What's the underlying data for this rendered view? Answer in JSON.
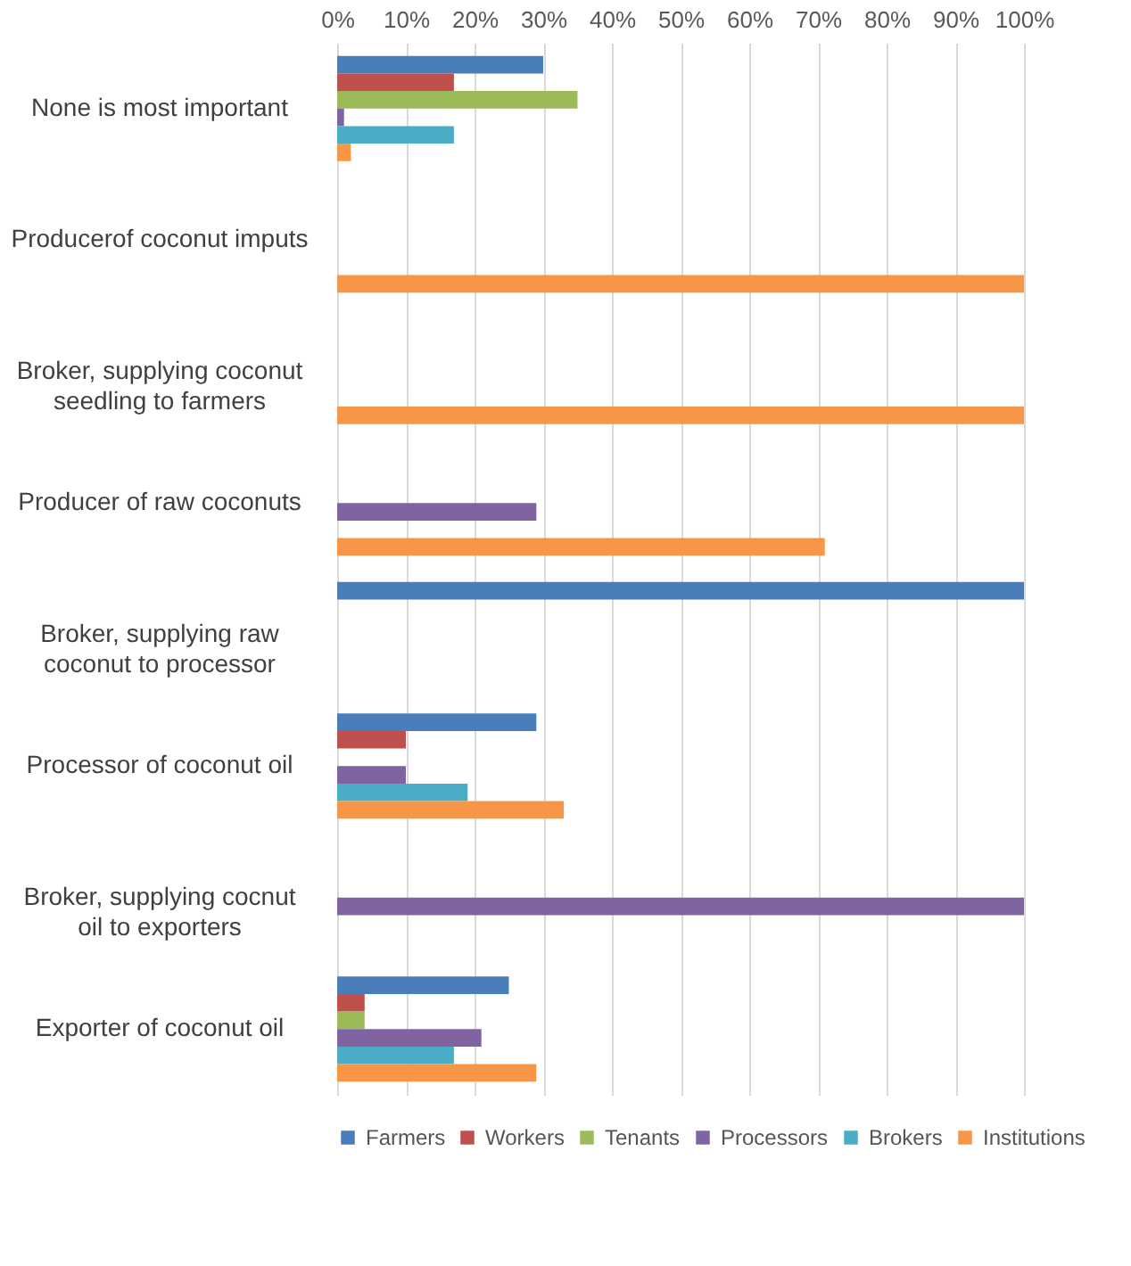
{
  "chart_data": {
    "type": "bar",
    "orientation": "horizontal",
    "categories": [
      "None is most important",
      "Producerof coconut imputs",
      "Broker, supplying coconut seedling to farmers",
      "Producer of raw coconuts",
      "Broker, supplying raw coconut to processor",
      "Processor of coconut oil",
      "Broker, supplying cocnut oil to exporters",
      "Exporter of coconut oil"
    ],
    "series": [
      {
        "name": "Farmers",
        "color": "#4a7ebb",
        "values": [
          30,
          0,
          0,
          0,
          100,
          29,
          0,
          25
        ]
      },
      {
        "name": "Workers",
        "color": "#c0504d",
        "values": [
          17,
          0,
          0,
          0,
          0,
          10,
          0,
          4
        ]
      },
      {
        "name": "Tenants",
        "color": "#9bbb59",
        "values": [
          35,
          0,
          0,
          0,
          0,
          0,
          0,
          4
        ]
      },
      {
        "name": "Processors",
        "color": "#8064a2",
        "values": [
          1,
          0,
          0,
          29,
          0,
          10,
          100,
          21
        ]
      },
      {
        "name": "Brokers",
        "color": "#4bacc6",
        "values": [
          17,
          0,
          0,
          0,
          0,
          19,
          0,
          17
        ]
      },
      {
        "name": "Institutions",
        "color": "#f79646",
        "values": [
          2,
          100,
          100,
          71,
          0,
          33,
          0,
          29
        ]
      }
    ],
    "xlim": [
      0,
      100
    ],
    "xticks": [
      {
        "value": 0,
        "label": "0%"
      },
      {
        "value": 10,
        "label": "10%"
      },
      {
        "value": 20,
        "label": "20%"
      },
      {
        "value": 30,
        "label": "30%"
      },
      {
        "value": 40,
        "label": "40%"
      },
      {
        "value": 50,
        "label": "50%"
      },
      {
        "value": 60,
        "label": "60%"
      },
      {
        "value": 70,
        "label": "70%"
      },
      {
        "value": 80,
        "label": "80%"
      },
      {
        "value": 90,
        "label": "90%"
      },
      {
        "value": 100,
        "label": "100%"
      }
    ],
    "grid": "x",
    "legend": "bottom"
  }
}
